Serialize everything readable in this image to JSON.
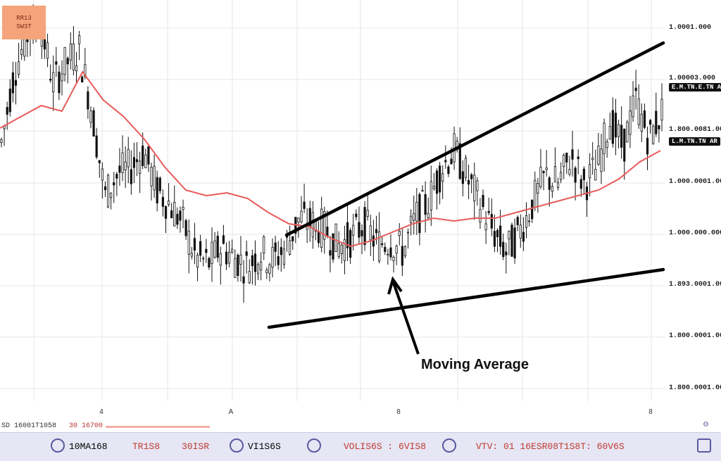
{
  "badge": {
    "line1": "RR13",
    "line2": "SW3T"
  },
  "price_labels": [
    "1.0001.000",
    "1.00003.000",
    "1.800.0081.000",
    "1.000.0001.000",
    "1.000.000.000",
    "1.893.0001.000",
    "1.800.0001.000",
    "1.800.0001.000"
  ],
  "price_tags": [
    "E.M.TN.E.TN AR",
    "L.M.TN.TN AR"
  ],
  "x_ticks": [
    "4",
    "A",
    "8",
    "8"
  ],
  "annotation": "Moving Average",
  "subbar": {
    "left_text": "SD 16001T1058",
    "mid_text": "30 16700",
    "gear": "⚙"
  },
  "toolbar": {
    "items": [
      {
        "label": "10MA168",
        "color": "#333333"
      },
      {
        "label": "TR1S8",
        "color": "#c0392b"
      },
      {
        "label": "30ISR",
        "color": "#c0392b"
      },
      {
        "label": "VI1S6S",
        "color": "#333333"
      },
      {
        "label": "VOLIS6S : 6VIS8",
        "color": "#c0392b"
      },
      {
        "label": "VTV: 01 16ESR08T1S8T: 60V6S",
        "color": "#c0392b"
      }
    ]
  },
  "colors": {
    "candle": "#111111",
    "ma": "#e85a5a",
    "trend": "#000000",
    "grid": "#e6e6e6"
  },
  "chart_data": {
    "type": "candlestick",
    "title": "",
    "xlabel": "",
    "ylabel": "",
    "grid": true,
    "indicators": [
      "Moving Average"
    ],
    "price_trend_points": [
      67,
      92,
      105,
      110,
      88,
      95,
      100,
      78,
      48,
      56,
      58,
      64,
      50,
      45,
      38,
      26,
      24,
      30,
      26,
      23,
      28,
      25,
      30,
      40,
      38,
      36,
      30,
      33,
      38,
      31,
      32,
      28,
      40,
      46,
      58,
      64,
      54,
      45,
      35,
      28,
      35,
      45,
      55,
      52,
      62,
      52,
      58,
      75,
      65,
      82,
      68,
      78
    ],
    "moving_average_points": [
      72,
      76,
      80,
      78,
      92,
      82,
      76,
      68,
      58,
      50,
      48,
      49,
      47,
      42,
      38,
      37,
      33,
      30,
      32,
      35,
      38,
      40,
      39,
      40,
      40,
      42,
      44,
      46,
      48,
      50,
      54,
      60,
      64
    ]
  }
}
